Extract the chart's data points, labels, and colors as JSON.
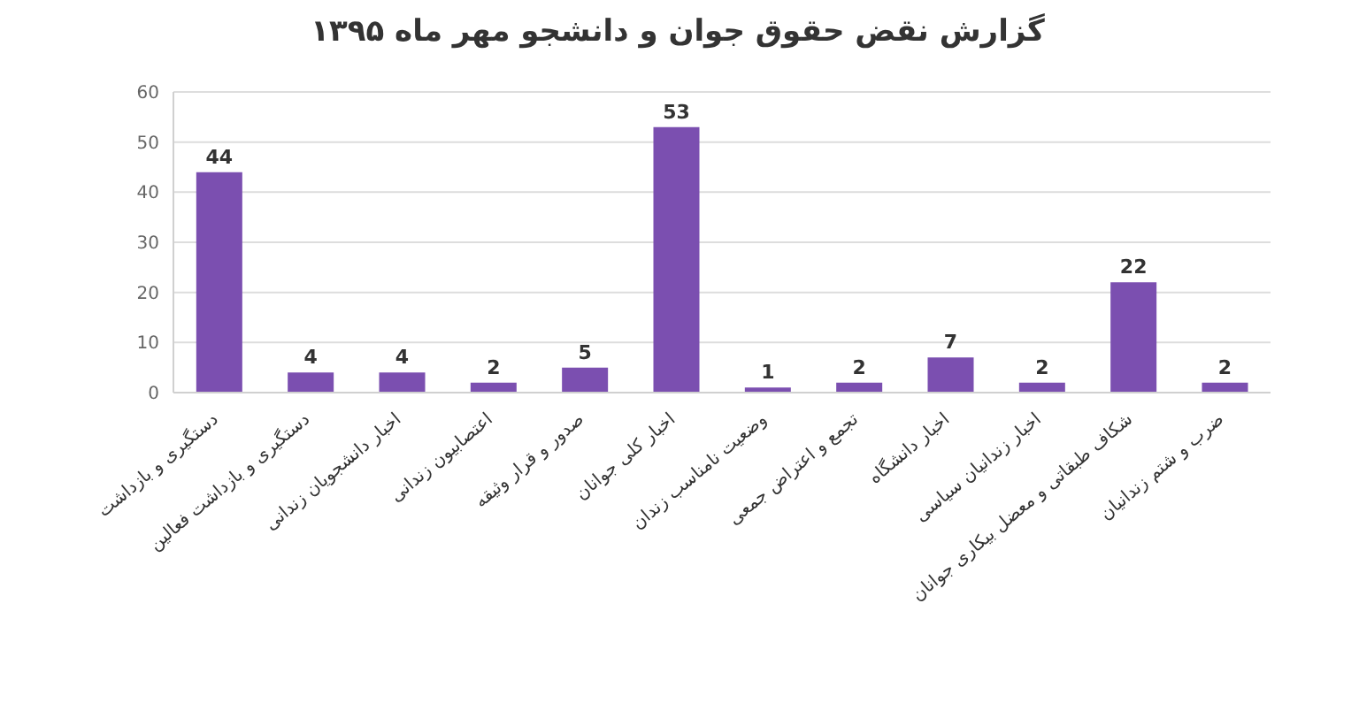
{
  "chart_data": {
    "type": "bar",
    "title": "گزارش نقض حقوق جوان و دانشجو مهر ماه ۱۳۹۵",
    "categories": [
      "دستگیری و بازداشت",
      "دستگیری و بازداشت فعالین",
      "اخبار دانشجویان زندانی",
      "اعتصابیون زندانی",
      "صدور و قرار وثیقه",
      "اخبار کلی جوانان",
      "وضعیت نامناسب زندان",
      "تجمع و اعتراض جمعی",
      "اخبار دانشگاه",
      "اخبار زندانیان سیاسی",
      "شکاف طبقاتی و معضل بیکاری جوانان",
      "ضرب و شتم زندانیان"
    ],
    "values": [
      44,
      4,
      4,
      2,
      5,
      53,
      1,
      2,
      7,
      2,
      22,
      2
    ],
    "color": "#7b4fb0",
    "ylim": [
      0,
      60
    ],
    "yticks": [
      0,
      10,
      20,
      30,
      40,
      50,
      60
    ],
    "grid": "y",
    "data_labels": true
  }
}
